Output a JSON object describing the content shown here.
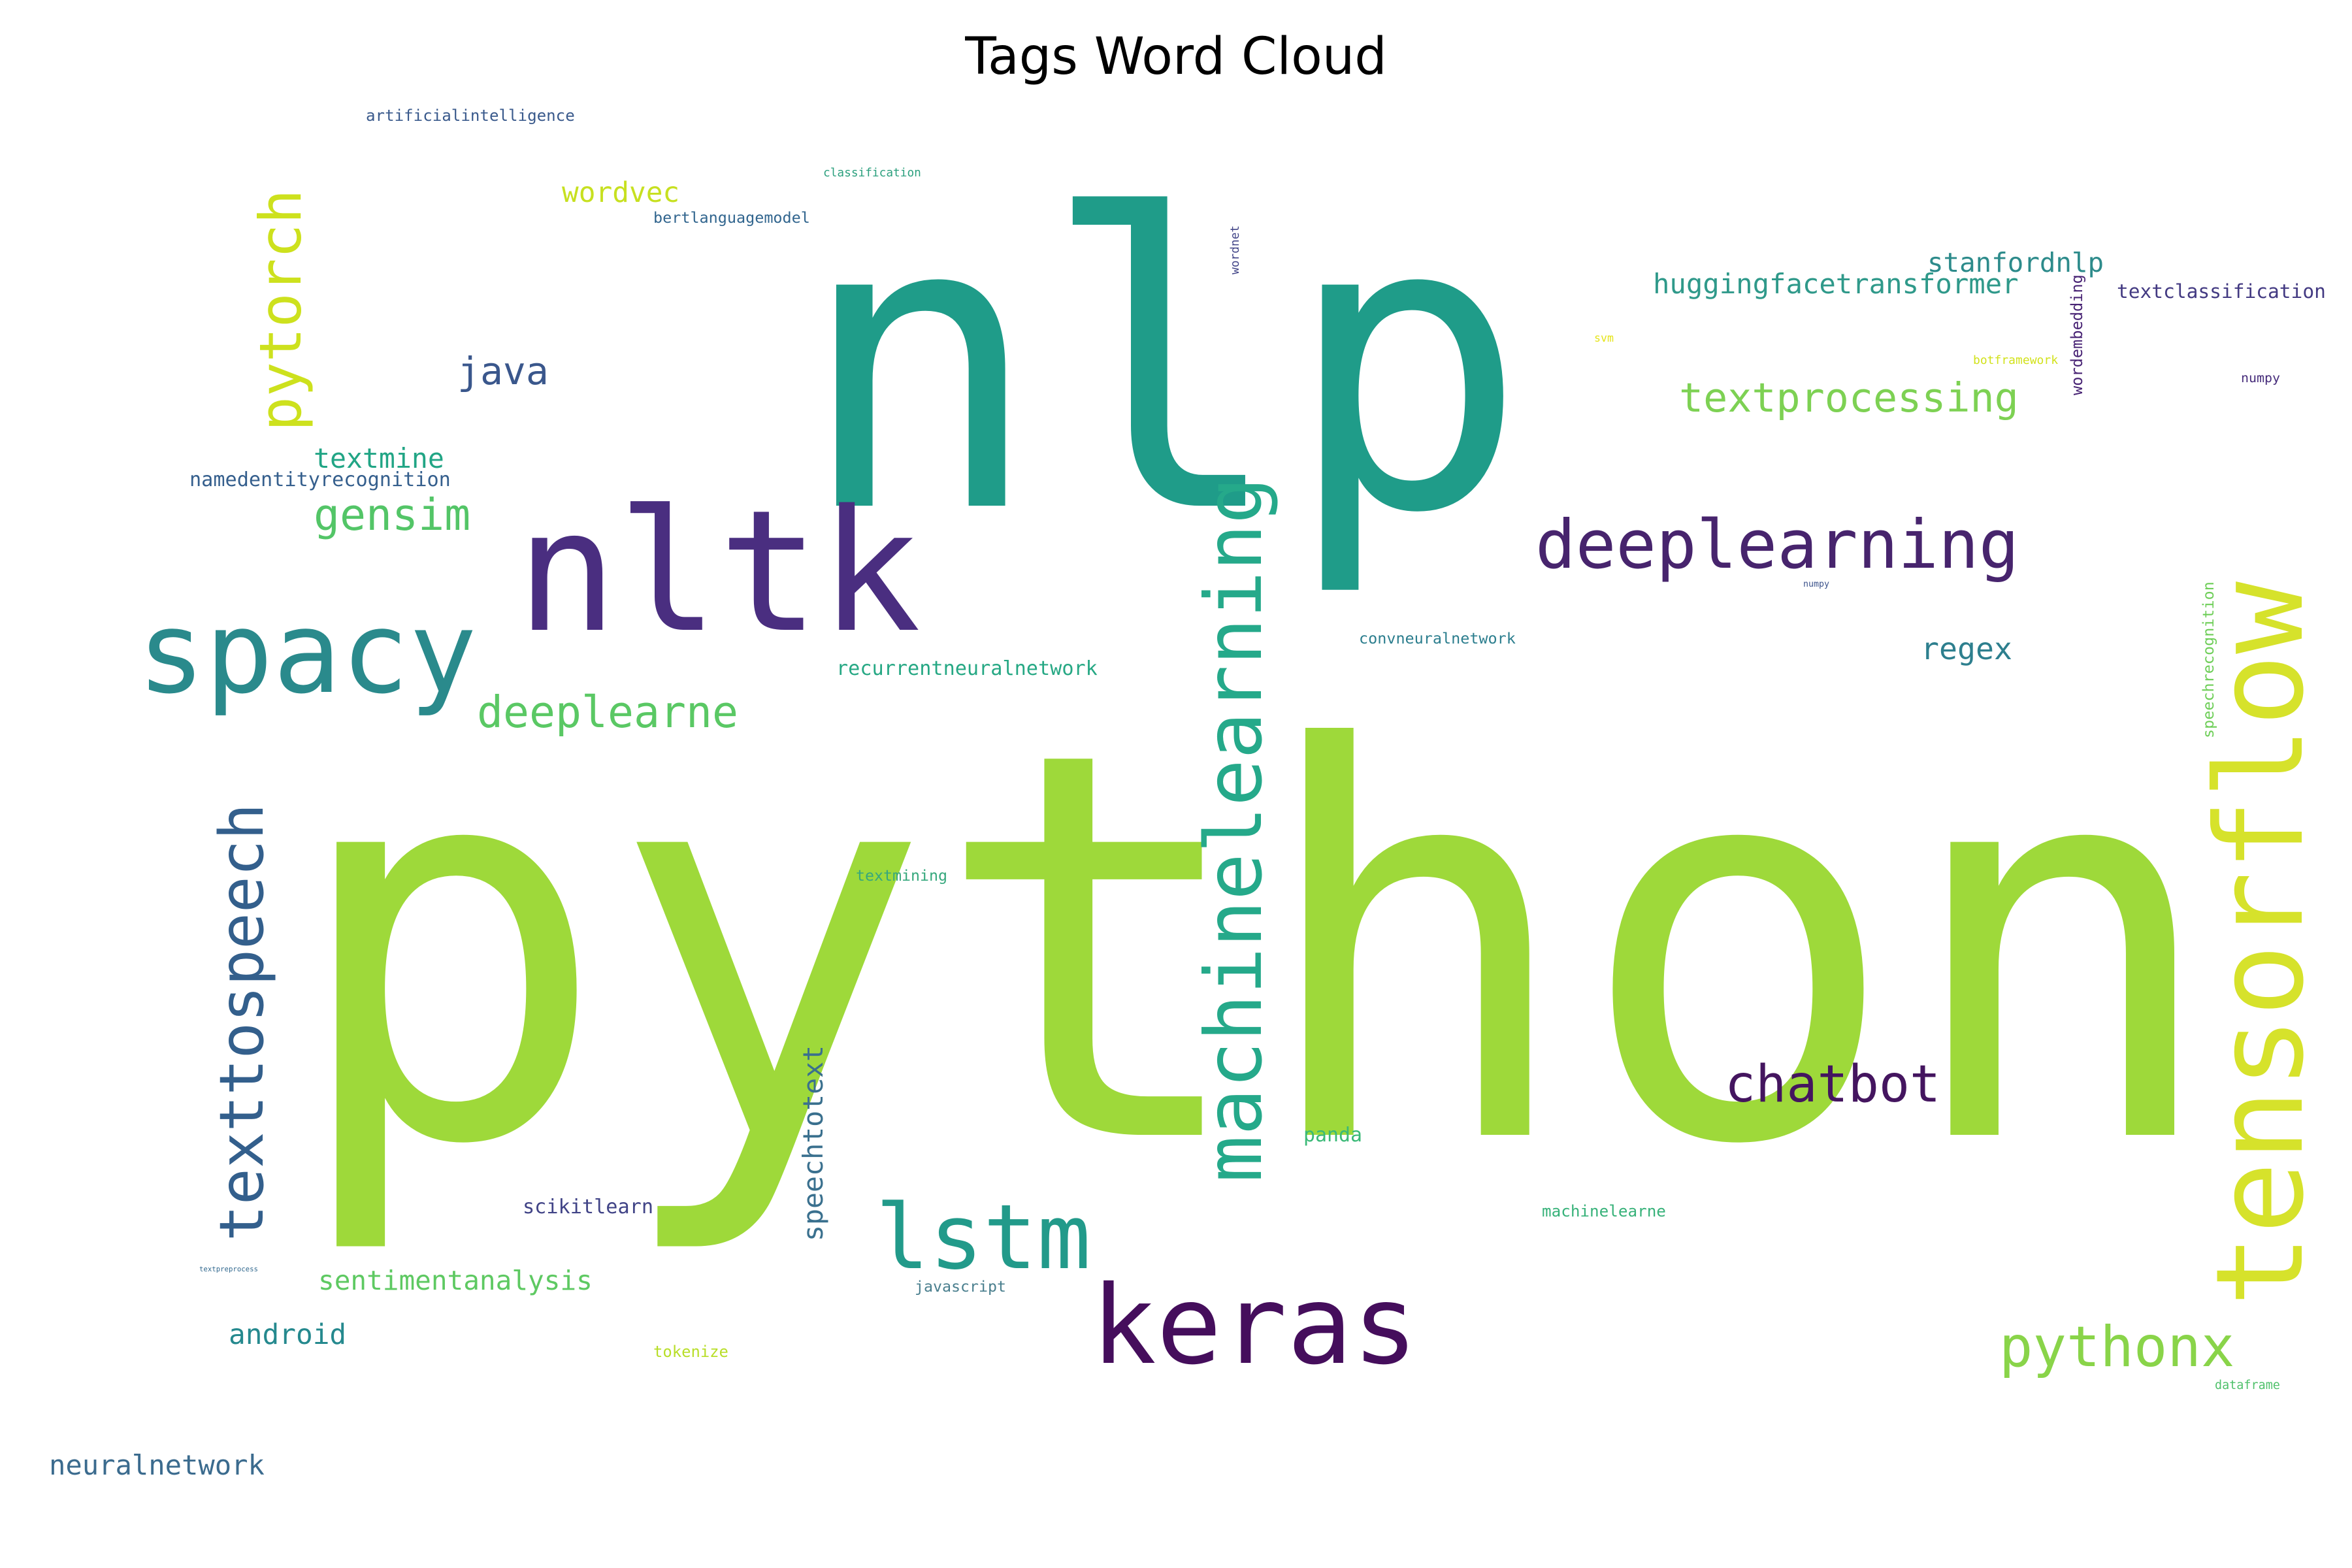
{
  "chart_data": {
    "type": "wordcloud",
    "title": "Tags Word Cloud",
    "words": [
      {
        "text": "python",
        "color": "#9ed93a"
      },
      {
        "text": "nlp",
        "color": "#1f9c89"
      },
      {
        "text": "nltk",
        "color": "#4a2e80"
      },
      {
        "text": "spacy",
        "color": "#2a8a8c"
      },
      {
        "text": "tensorflow",
        "color": "#d6e22b"
      },
      {
        "text": "machinelearning",
        "color": "#25a98a"
      },
      {
        "text": "keras",
        "color": "#450e5c"
      },
      {
        "text": "lstm",
        "color": "#229a8a"
      },
      {
        "text": "deeplearning",
        "color": "#47246d"
      },
      {
        "text": "texttospeech",
        "color": "#335f8c"
      },
      {
        "text": "pytorch",
        "color": "#cde11d"
      },
      {
        "text": "chatbot",
        "color": "#44155f"
      },
      {
        "text": "pythonx",
        "color": "#89d449"
      },
      {
        "text": "deeplearne",
        "color": "#5ac864"
      },
      {
        "text": "textprocessing",
        "color": "#7dd153"
      },
      {
        "text": "gensim",
        "color": "#53c567"
      },
      {
        "text": "java",
        "color": "#3a578c"
      },
      {
        "text": "speechtotext",
        "color": "#3a708e"
      },
      {
        "text": "stanfordnlp",
        "color": "#2d8b8b"
      },
      {
        "text": "huggingfacetransformer",
        "color": "#2f998a"
      },
      {
        "text": "regex",
        "color": "#2d7f8e"
      },
      {
        "text": "wordvec",
        "color": "#c7e020"
      },
      {
        "text": "textmine",
        "color": "#21a585"
      },
      {
        "text": "namedentityrecognition",
        "color": "#355f8d"
      },
      {
        "text": "sentimentanalysis",
        "color": "#5ec962"
      },
      {
        "text": "android",
        "color": "#25898e"
      },
      {
        "text": "scikitlearn",
        "color": "#414487"
      },
      {
        "text": "neuralnetwork",
        "color": "#3b6b8e"
      },
      {
        "text": "textclassification",
        "color": "#433a82"
      },
      {
        "text": "recurrentneuralnetwork",
        "color": "#26a884"
      },
      {
        "text": "convneuralnetwork",
        "color": "#2c7e8e"
      },
      {
        "text": "speechrecognition",
        "color": "#6ece58"
      },
      {
        "text": "wordembedding",
        "color": "#482374"
      },
      {
        "text": "artificialintelligence",
        "color": "#3a5a8c"
      },
      {
        "text": "bertlanguagemodel",
        "color": "#31658e"
      },
      {
        "text": "classification",
        "color": "#2ca07e"
      },
      {
        "text": "panda",
        "color": "#3ab977"
      },
      {
        "text": "machinelearne",
        "color": "#38b27a"
      },
      {
        "text": "textmining",
        "color": "#36a87d"
      },
      {
        "text": "javascript",
        "color": "#4a7f8e"
      },
      {
        "text": "tokenize",
        "color": "#b8de29"
      },
      {
        "text": "botframework",
        "color": "#d2e21b"
      },
      {
        "text": "dataframe",
        "color": "#4fc16b"
      },
      {
        "text": "numpy",
        "color": "#472d7b"
      },
      {
        "text": "wordnet",
        "color": "#414487"
      },
      {
        "text": "svm",
        "color": "#e5e419"
      },
      {
        "text": "numpy",
        "color": "#3b528b"
      },
      {
        "text": "textpreprocess",
        "color": "#31688e"
      }
    ]
  }
}
